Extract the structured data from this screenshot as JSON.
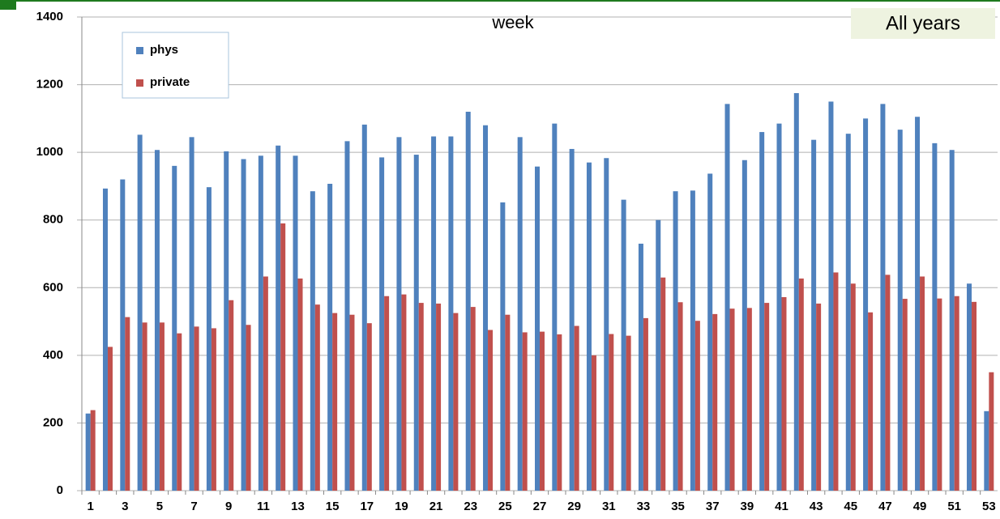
{
  "chart_data": {
    "type": "bar",
    "title": "week",
    "subtitle": "All years",
    "categories": [
      1,
      null,
      3,
      null,
      5,
      null,
      7,
      null,
      9,
      null,
      11,
      null,
      13,
      null,
      15,
      null,
      17,
      null,
      19,
      null,
      21,
      null,
      23,
      null,
      25,
      null,
      27,
      null,
      29,
      null,
      31,
      null,
      33,
      null,
      35,
      null,
      37,
      null,
      39,
      null,
      41,
      null,
      43,
      null,
      45,
      null,
      47,
      null,
      49,
      null,
      51,
      null,
      53
    ],
    "series": [
      {
        "name": "phys",
        "color": "#4f81bd",
        "values": [
          228,
          893,
          920,
          1052,
          1007,
          960,
          1045,
          897,
          1003,
          980,
          990,
          1020,
          990,
          885,
          907,
          1033,
          1082,
          985,
          1045,
          993,
          1047,
          1047,
          1120,
          1080,
          852,
          1045,
          958,
          1085,
          1010,
          970,
          983,
          860,
          730,
          800,
          885,
          887,
          937,
          1143,
          977,
          1060,
          1085,
          1175,
          1037,
          1150,
          1055,
          1100,
          1143,
          1067,
          1105,
          1027,
          1007,
          612,
          235
        ]
      },
      {
        "name": "private",
        "color": "#c0504d",
        "values": [
          238,
          425,
          513,
          497,
          497,
          465,
          485,
          480,
          563,
          490,
          633,
          790,
          627,
          550,
          525,
          520,
          495,
          575,
          580,
          555,
          553,
          525,
          543,
          475,
          520,
          468,
          470,
          462,
          487,
          400,
          463,
          458,
          510,
          630,
          557,
          502,
          522,
          538,
          540,
          555,
          572,
          627,
          553,
          645,
          612,
          527,
          638,
          567,
          633,
          568,
          575,
          558,
          350
        ]
      }
    ],
    "ylim": [
      0,
      1400
    ],
    "yticks": [
      0,
      200,
      400,
      600,
      800,
      1000,
      1200,
      1400
    ],
    "grid": true
  }
}
